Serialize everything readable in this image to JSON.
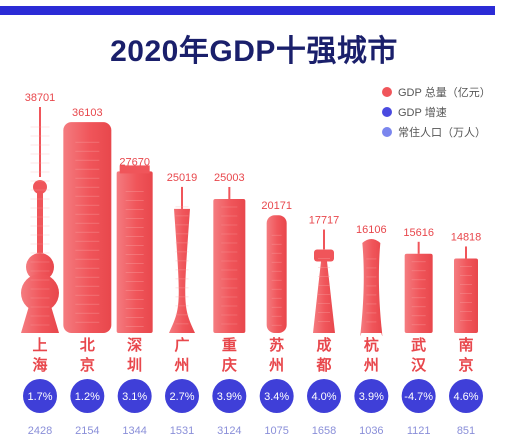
{
  "title": "2020年GDP十强城市",
  "legend": [
    {
      "label": "GDP 总量（亿元）",
      "color": "#f0555a"
    },
    {
      "label": "GDP 增速",
      "color": "#4a4ae0"
    },
    {
      "label": "常住人口（万人）",
      "color": "#7b86ee"
    }
  ],
  "colors": {
    "building": "#f0555a",
    "building_light": "#f8a7a7",
    "growth_circle": "#3f3fd8",
    "bar": "#2b2bd6"
  },
  "chart_data": {
    "type": "bar",
    "title": "2020年GDP十强城市",
    "categories": [
      "上海",
      "北京",
      "深圳",
      "广州",
      "重庆",
      "苏州",
      "成都",
      "杭州",
      "武汉",
      "南京"
    ],
    "series": [
      {
        "name": "GDP 总量（亿元）",
        "values": [
          38701,
          36103,
          27670,
          25019,
          25003,
          20171,
          17717,
          16106,
          15616,
          14818
        ]
      },
      {
        "name": "GDP 增速",
        "values": [
          "1.7%",
          "1.2%",
          "3.1%",
          "2.7%",
          "3.9%",
          "3.4%",
          "4.0%",
          "3.9%",
          "-4.7%",
          "4.6%"
        ]
      },
      {
        "name": "常住人口（万人）",
        "values": [
          2428,
          2154,
          1344,
          1531,
          3124,
          1075,
          1658,
          1036,
          1121,
          851
        ]
      }
    ]
  }
}
